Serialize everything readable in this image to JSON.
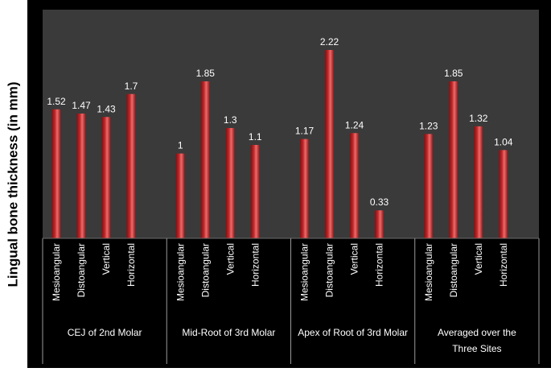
{
  "chart_data": {
    "type": "bar",
    "title": "",
    "ylabel": "Lingual bone thickness (in mm)",
    "xlabel": "",
    "ylim": [
      0,
      2.4
    ],
    "grid": false,
    "legend": "none",
    "colors": {
      "bar": "#c0282a",
      "bar_highlight": "#ef6a6a",
      "plot_background": "#3a3a3a",
      "frame_background": "#000000",
      "text": "#ffffff"
    },
    "groups": [
      {
        "label": "CEJ of 2nd Molar",
        "bars": [
          {
            "category": "Mesioangular",
            "value": 1.52,
            "value_label": "1.52"
          },
          {
            "category": "Distoangular",
            "value": 1.47,
            "value_label": "1.47"
          },
          {
            "category": "Vertical",
            "value": 1.43,
            "value_label": "1.43"
          },
          {
            "category": "Horizontal",
            "value": 1.7,
            "value_label": "1.7"
          }
        ]
      },
      {
        "label": "Mid-Root of 3rd  Molar",
        "bars": [
          {
            "category": "Mesioangular",
            "value": 1,
            "value_label": "1"
          },
          {
            "category": "Distoangular",
            "value": 1.85,
            "value_label": "1.85"
          },
          {
            "category": "Vertical",
            "value": 1.3,
            "value_label": "1.3"
          },
          {
            "category": "Horizontal",
            "value": 1.1,
            "value_label": "1.1"
          }
        ]
      },
      {
        "label": "Apex of Root of 3rd Molar",
        "bars": [
          {
            "category": "Mesioangular",
            "value": 1.17,
            "value_label": "1.17"
          },
          {
            "category": "Distoangular",
            "value": 2.22,
            "value_label": "2.22"
          },
          {
            "category": "Vertical",
            "value": 1.24,
            "value_label": "1.24"
          },
          {
            "category": "Horizontal",
            "value": 0.33,
            "value_label": "0.33"
          }
        ]
      },
      {
        "label_lines": [
          "Averaged over the",
          "Three Sites"
        ],
        "bars": [
          {
            "category": "Mesioangular",
            "value": 1.23,
            "value_label": "1.23"
          },
          {
            "category": "Distoangular",
            "value": 1.85,
            "value_label": "1.85"
          },
          {
            "category": "Vertical",
            "value": 1.32,
            "value_label": "1.32"
          },
          {
            "category": "Horizontal",
            "value": 1.04,
            "value_label": "1.04"
          }
        ]
      }
    ]
  }
}
